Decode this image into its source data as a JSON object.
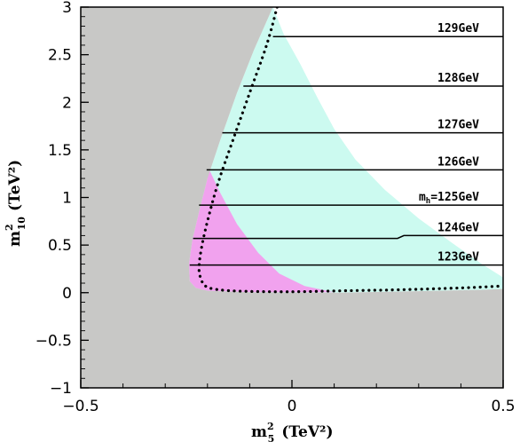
{
  "chart_data": {
    "type": "area",
    "xlabel": "m",
    "xlabel_sup": "2",
    "xlabel_sub": "5",
    "xlabel_unit": "(TeV²)",
    "ylabel": "m",
    "ylabel_sup": "2",
    "ylabel_sub": "10",
    "ylabel_unit": "(TeV²)",
    "xlim": [
      -0.5,
      0.5
    ],
    "ylim": [
      -1,
      3
    ],
    "x_ticks": [
      {
        "value": -0.5,
        "label": "−0.5"
      },
      {
        "value": 0,
        "label": "0"
      },
      {
        "value": 0.5,
        "label": "0.5"
      }
    ],
    "y_ticks": [
      {
        "value": -1,
        "label": "−1"
      },
      {
        "value": -0.5,
        "label": "−0.5"
      },
      {
        "value": 0,
        "label": "0"
      },
      {
        "value": 0.5,
        "label": "0.5"
      },
      {
        "value": 1,
        "label": "1"
      },
      {
        "value": 1.5,
        "label": "1.5"
      },
      {
        "value": 2,
        "label": "2"
      },
      {
        "value": 2.5,
        "label": "2.5"
      },
      {
        "value": 3,
        "label": "3"
      }
    ],
    "colors": {
      "excluded": "#c8c8c6",
      "allowed": "#ccfaf0",
      "magenta": "#f1a2ee",
      "line": "#000000"
    },
    "excluded_region": [
      [
        -0.5,
        3
      ],
      [
        -0.045,
        3
      ],
      [
        -0.06,
        2.85
      ],
      [
        -0.09,
        2.55
      ],
      [
        -0.13,
        2.1
      ],
      [
        -0.17,
        1.6
      ],
      [
        -0.2,
        1.2
      ],
      [
        -0.22,
        0.85
      ],
      [
        -0.236,
        0.55
      ],
      [
        -0.244,
        0.3
      ],
      [
        -0.242,
        0.12
      ],
      [
        -0.228,
        0.05
      ],
      [
        -0.2,
        0.02
      ],
      [
        -0.1,
        0.005
      ],
      [
        0.1,
        0
      ],
      [
        0.3,
        0.015
      ],
      [
        0.45,
        0.03
      ],
      [
        0.5,
        0.04
      ],
      [
        0.5,
        -1
      ],
      [
        -0.5,
        -1
      ]
    ],
    "allowed_region": [
      [
        -0.045,
        3
      ],
      [
        -0.02,
        2.72
      ],
      [
        0.02,
        2.4
      ],
      [
        0.06,
        2.05
      ],
      [
        0.1,
        1.72
      ],
      [
        0.15,
        1.4
      ],
      [
        0.22,
        1.08
      ],
      [
        0.3,
        0.78
      ],
      [
        0.38,
        0.52
      ],
      [
        0.45,
        0.3
      ],
      [
        0.5,
        0.16
      ],
      [
        0.5,
        0.04
      ],
      [
        0.45,
        0.03
      ],
      [
        0.3,
        0.015
      ],
      [
        0.1,
        0
      ],
      [
        -0.1,
        0.005
      ],
      [
        -0.2,
        0.02
      ],
      [
        -0.228,
        0.05
      ],
      [
        -0.242,
        0.12
      ],
      [
        -0.244,
        0.3
      ],
      [
        -0.236,
        0.55
      ],
      [
        -0.22,
        0.85
      ],
      [
        -0.2,
        1.2
      ],
      [
        -0.17,
        1.6
      ],
      [
        -0.13,
        2.1
      ],
      [
        -0.09,
        2.55
      ],
      [
        -0.06,
        2.85
      ]
    ],
    "magenta_region": [
      [
        -0.205,
        1.38
      ],
      [
        -0.17,
        1.05
      ],
      [
        -0.13,
        0.72
      ],
      [
        -0.08,
        0.42
      ],
      [
        -0.03,
        0.2
      ],
      [
        0.03,
        0.07
      ],
      [
        0.1,
        0.005
      ],
      [
        -0.1,
        0.005
      ],
      [
        -0.2,
        0.02
      ],
      [
        -0.228,
        0.05
      ],
      [
        -0.242,
        0.12
      ],
      [
        -0.244,
        0.3
      ],
      [
        -0.236,
        0.55
      ],
      [
        -0.22,
        0.85
      ],
      [
        -0.2,
        1.2
      ],
      [
        -0.2,
        1.38
      ]
    ],
    "dotted_boundary": [
      [
        -0.035,
        3
      ],
      [
        -0.06,
        2.6
      ],
      [
        -0.1,
        2.1
      ],
      [
        -0.14,
        1.6
      ],
      [
        -0.175,
        1.15
      ],
      [
        -0.2,
        0.75
      ],
      [
        -0.215,
        0.45
      ],
      [
        -0.22,
        0.25
      ],
      [
        -0.215,
        0.14
      ],
      [
        -0.205,
        0.07
      ],
      [
        -0.18,
        0.035
      ],
      [
        -0.12,
        0.015
      ],
      [
        0,
        0.01
      ],
      [
        0.12,
        0.02
      ],
      [
        0.25,
        0.03
      ],
      [
        0.4,
        0.05
      ],
      [
        0.5,
        0.07
      ]
    ],
    "contours": [
      {
        "label": "129GeV",
        "y": 2.69,
        "x_start": -0.045
      },
      {
        "label": "128GeV",
        "y": 2.17,
        "x_start": -0.115
      },
      {
        "label": "127GeV",
        "y": 1.68,
        "x_start": -0.165
      },
      {
        "label": "126GeV",
        "y": 1.29,
        "x_start": -0.202
      },
      {
        "label_prefix": "m",
        "label_sub": "h",
        "label": "=125GeV",
        "y": 0.92,
        "x_start": -0.22
      },
      {
        "label": "124GeV",
        "y": 0.57,
        "x_start": -0.234,
        "step_x": 0.25,
        "y_after": 0.6
      },
      {
        "label": "123GeV",
        "y": 0.29,
        "x_start": -0.242
      }
    ]
  }
}
